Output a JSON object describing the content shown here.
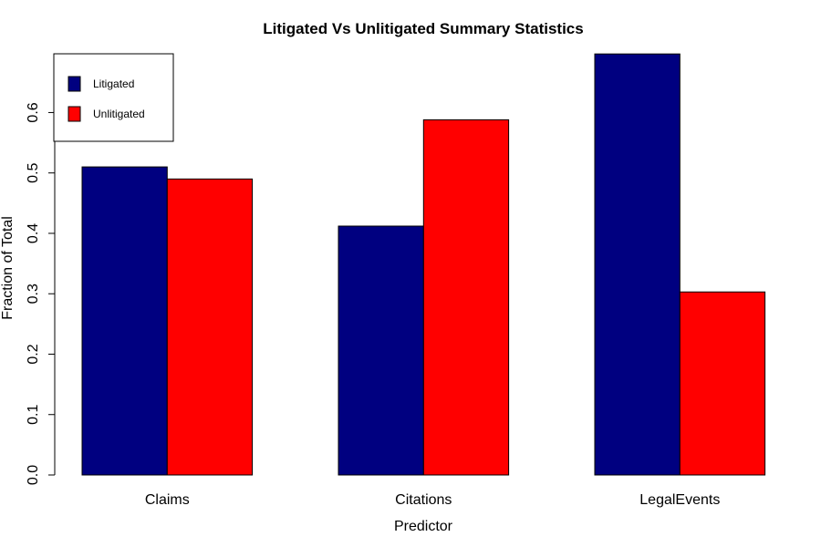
{
  "chart_data": {
    "type": "bar",
    "title": "Litigated Vs Unlitigated Summary Statistics",
    "xlabel": "Predictor",
    "ylabel": "Fraction of Total",
    "categories": [
      "Claims",
      "Citations",
      "LegalEvents"
    ],
    "series": [
      {
        "name": "Litigated",
        "color": "#000080",
        "values": [
          0.51,
          0.412,
          0.697
        ]
      },
      {
        "name": "Unlitigated",
        "color": "#ff0000",
        "values": [
          0.49,
          0.588,
          0.303
        ]
      }
    ],
    "yticks": [
      0.0,
      0.1,
      0.2,
      0.3,
      0.4,
      0.5,
      0.6
    ],
    "ytick_labels": [
      "0.0",
      "0.1",
      "0.2",
      "0.3",
      "0.4",
      "0.5",
      "0.6"
    ],
    "ylim": [
      0,
      0.7
    ],
    "legend_position": "top-left",
    "grid": false
  }
}
